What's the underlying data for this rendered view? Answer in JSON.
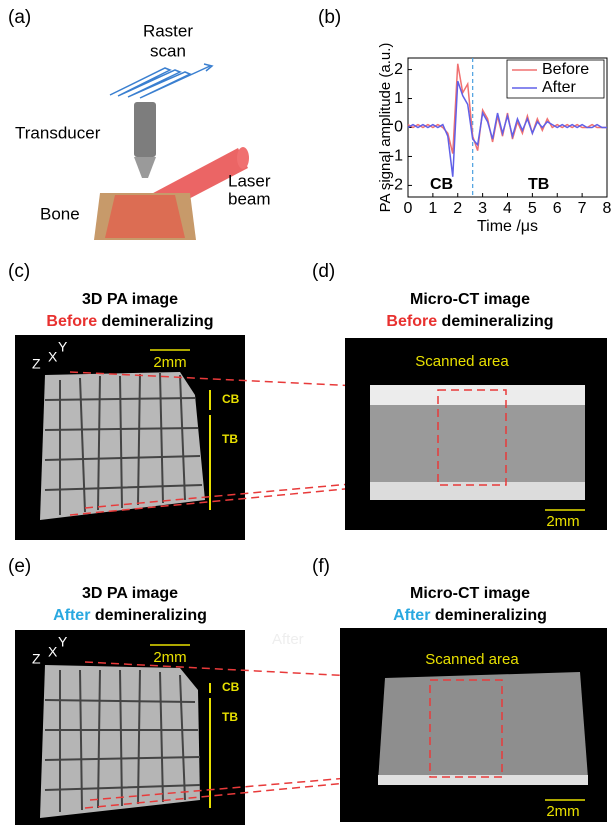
{
  "panel_a": {
    "label": "(a)",
    "raster_scan": [
      "Raster",
      "scan"
    ],
    "transducer": "Transducer",
    "laser_beam": [
      "Laser",
      "beam"
    ],
    "bone": "Bone"
  },
  "chart_data": {
    "label": "(b)",
    "type": "line",
    "ylabel": "PA signal amplitude (a.u.)",
    "xlabel": "Time /μs",
    "x": [
      0,
      0.2,
      0.4,
      0.6,
      0.8,
      1,
      1.2,
      1.4,
      1.6,
      1.8,
      2,
      2.2,
      2.4,
      2.6,
      2.8,
      3,
      3.2,
      3.4,
      3.6,
      3.8,
      4,
      4.2,
      4.4,
      4.6,
      4.8,
      5,
      5.2,
      5.4,
      5.6,
      5.8,
      6,
      6.2,
      6.4,
      6.6,
      6.8,
      7,
      7.2,
      7.4,
      7.6,
      7.8,
      8
    ],
    "series": [
      {
        "name": "Before",
        "color": "#f07070",
        "values": [
          0.1,
          0,
          0.1,
          0,
          0.1,
          0,
          0.1,
          0,
          -0.2,
          -0.9,
          2.2,
          1.2,
          1.5,
          -0.3,
          -0.8,
          0.6,
          0.3,
          -0.5,
          0.4,
          -0.3,
          0.5,
          -0.4,
          0.2,
          -0.2,
          0.4,
          -0.2,
          0.3,
          -0.1,
          0.3,
          0,
          0.1,
          0,
          0.1,
          0,
          0.1,
          0,
          0,
          0.1,
          0,
          0,
          0
        ]
      },
      {
        "name": "After",
        "color": "#6060e8",
        "values": [
          0,
          0.1,
          0,
          0.1,
          0,
          0.1,
          0,
          0.1,
          -0.3,
          -1.7,
          1.6,
          1.1,
          0.8,
          -0.4,
          -0.6,
          0.5,
          0.2,
          -0.4,
          0.5,
          -0.2,
          0.4,
          -0.3,
          0.3,
          -0.1,
          0.3,
          -0.2,
          0.2,
          0,
          0.2,
          0.1,
          0,
          0.1,
          0,
          0.1,
          0,
          0.1,
          0,
          0,
          0.1,
          0,
          0
        ]
      }
    ],
    "xlim": [
      0,
      8
    ],
    "xticks": [
      0,
      1,
      2,
      3,
      4,
      5,
      6,
      7,
      8
    ],
    "ylim": [
      -2.4,
      2.4
    ],
    "yticks": [
      -2,
      -1,
      0,
      1,
      2
    ],
    "legend": "upper right",
    "annotations": [
      "CB",
      "TB"
    ],
    "divider_x": 2.6
  },
  "panel_c": {
    "label": "(c)",
    "title": "3D PA image",
    "subtitle": [
      "Before",
      "demineralizing"
    ],
    "axes": [
      "Y",
      "X",
      "Z"
    ],
    "scale": "2mm",
    "regions": [
      "CB",
      "TB"
    ]
  },
  "panel_d": {
    "label": "(d)",
    "title": "Micro-CT image",
    "subtitle": [
      "Before",
      "demineralizing"
    ],
    "scanned_area": "Scanned area",
    "scale": "2mm"
  },
  "panel_e": {
    "label": "(e)",
    "title": "3D PA image",
    "subtitle": [
      "After",
      "demineralizing"
    ],
    "axes": [
      "Y",
      "X",
      "Z"
    ],
    "scale": "2mm",
    "regions": [
      "CB",
      "TB"
    ],
    "watermark": "After"
  },
  "panel_f": {
    "label": "(f)",
    "title": "Micro-CT image",
    "subtitle": [
      "After",
      "demineralizing"
    ],
    "scanned_area": "Scanned area",
    "scale": "2mm"
  }
}
